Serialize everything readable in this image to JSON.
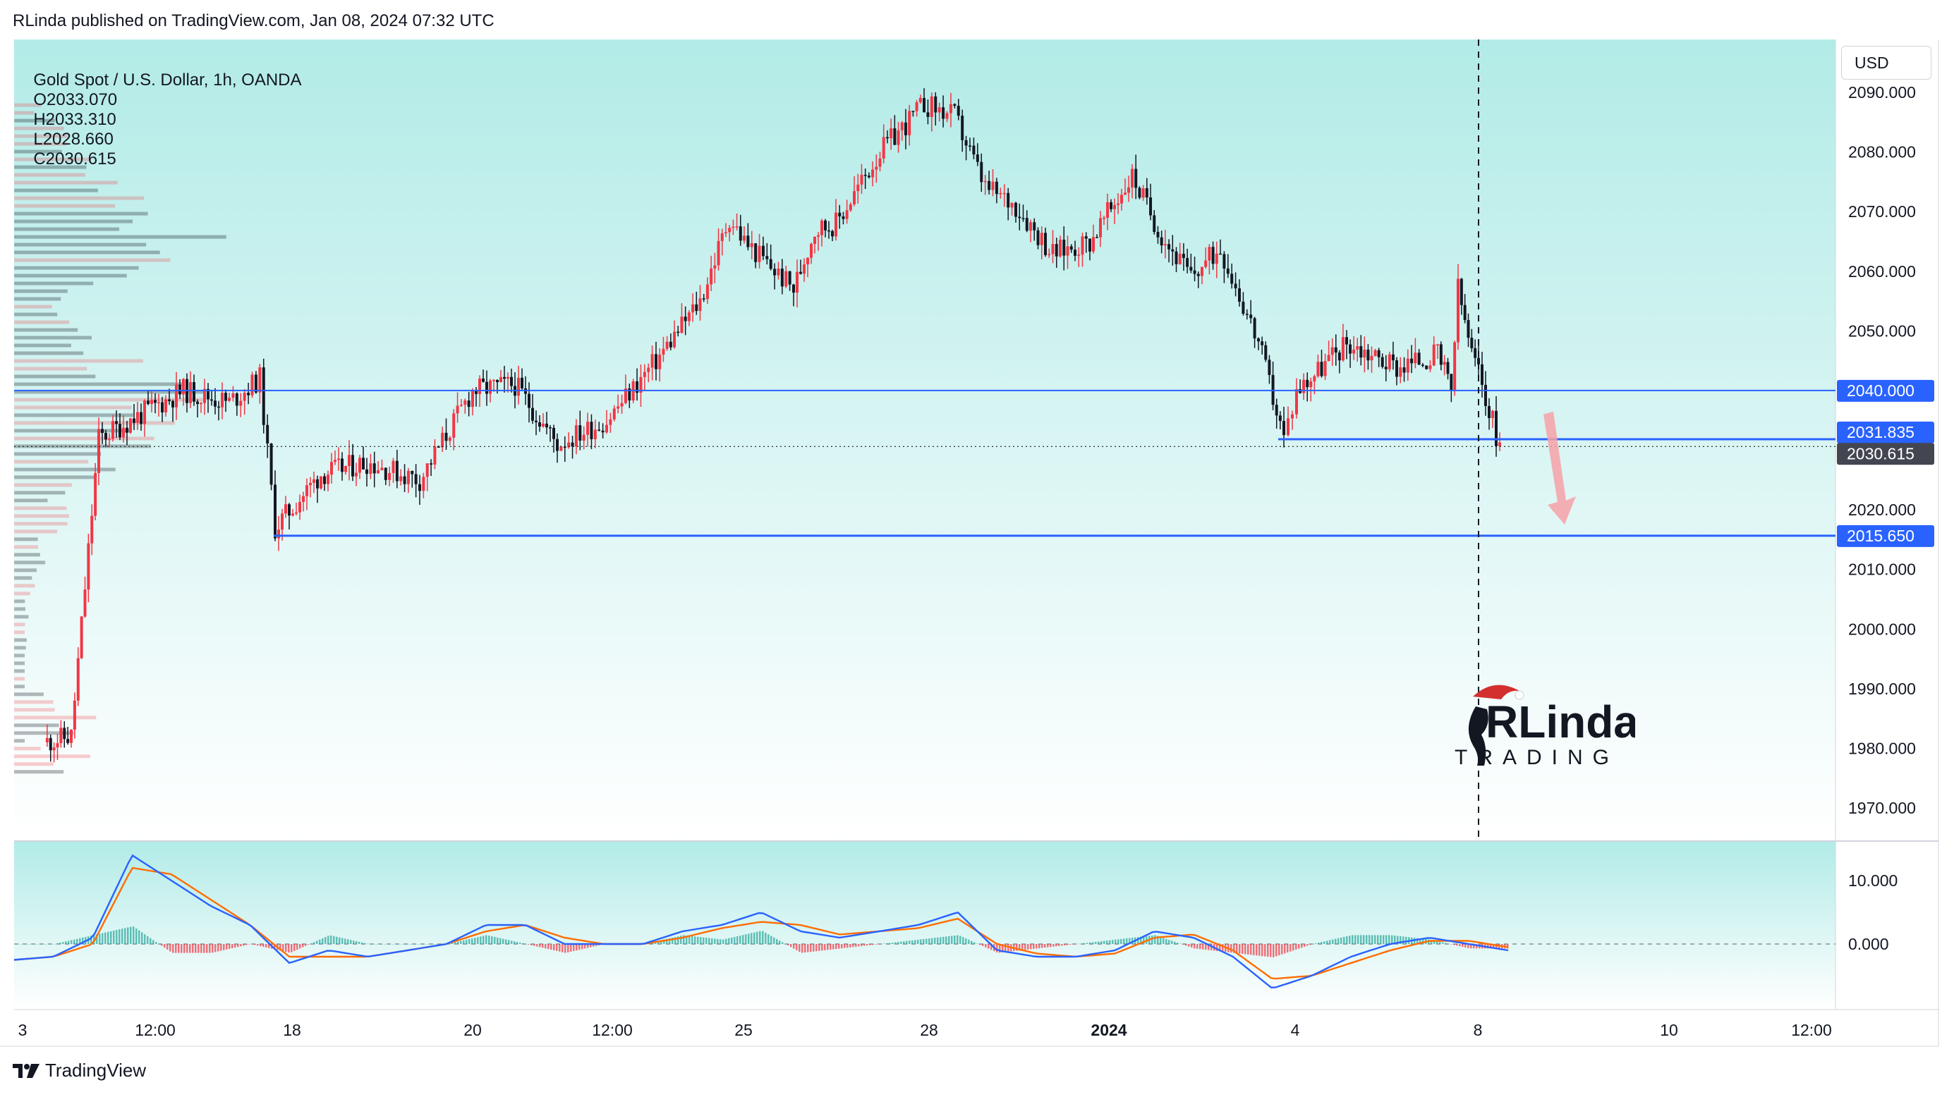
{
  "header": {
    "published_text": "RLinda published on TradingView.com, Jan 08, 2024 07:32 UTC"
  },
  "legend": {
    "symbol": "Gold Spot / U.S. Dollar, 1h, OANDA",
    "open": "O2033.070",
    "high": "H2033.310",
    "low": "L2028.660",
    "close": "C2030.615"
  },
  "currency_button": "USD",
  "footer": {
    "brand": "TradingView"
  },
  "watermark": {
    "line1": "RLinda",
    "line2": "TRADING"
  },
  "colors": {
    "up": "#f23645",
    "down": "#131722",
    "level_line": "#2962ff",
    "bg_top": "#b2ebe7",
    "bg_bottom": "#ffffff",
    "macd": "#2962ff",
    "signal": "#ff6d00",
    "hist_pos": "#26a69a",
    "hist_neg": "#f23645",
    "arrow": "#f7a1a7"
  },
  "chart_data": [
    {
      "type": "candlestick",
      "title": "Gold Spot / U.S. Dollar, 1h, OANDA",
      "y_axis": {
        "ylim": [
          1963,
          2095
        ],
        "ticks": [
          "1970.000",
          "1980.000",
          "1990.000",
          "2000.000",
          "2010.000",
          "2020.000",
          "2030.000",
          "2040.000",
          "2050.000",
          "2060.000",
          "2070.000",
          "2080.000",
          "2090.000"
        ]
      },
      "x_axis": {
        "ticks": [
          "3",
          "12:00",
          "18",
          "20",
          "12:00",
          "25",
          "28",
          "2024",
          "4",
          "8",
          "10",
          "12:00"
        ],
        "bold_tick": "2024"
      },
      "path_anchors": [
        {
          "x": "Dec 13",
          "y": 1981
        },
        {
          "x": "Dec 13 12:00",
          "y": 1982
        },
        {
          "x": "Dec 14",
          "y": 2032
        },
        {
          "x": "Dec 14 12:00",
          "y": 2036
        },
        {
          "x": "Dec 15 00:00",
          "y": 2040
        },
        {
          "x": "Dec 15 12:00",
          "y": 2038
        },
        {
          "x": "Dec 15 20:00",
          "y": 2042
        },
        {
          "x": "Dec 18",
          "y": 2017
        },
        {
          "x": "Dec 18 12:00",
          "y": 2026
        },
        {
          "x": "Dec 19",
          "y": 2028
        },
        {
          "x": "Dec 19 12:00",
          "y": 2025
        },
        {
          "x": "Dec 20",
          "y": 2040
        },
        {
          "x": "Dec 20 12:00",
          "y": 2041
        },
        {
          "x": "Dec 21",
          "y": 2031
        },
        {
          "x": "Dec 21 12:00",
          "y": 2035
        },
        {
          "x": "Dec 22",
          "y": 2045
        },
        {
          "x": "Dec 22 12:00",
          "y": 2055
        },
        {
          "x": "Dec 22 20:00",
          "y": 2069
        },
        {
          "x": "Dec 25",
          "y": 2065
        },
        {
          "x": "Dec 26",
          "y": 2057
        },
        {
          "x": "Dec 26 12:00",
          "y": 2067
        },
        {
          "x": "Dec 27",
          "y": 2068
        },
        {
          "x": "Dec 27 12:00",
          "y": 2080
        },
        {
          "x": "Dec 28 00:00",
          "y": 2088
        },
        {
          "x": "Dec 28 08:00",
          "y": 2086
        },
        {
          "x": "Dec 28 16:00",
          "y": 2074
        },
        {
          "x": "Dec 29",
          "y": 2071
        },
        {
          "x": "Dec 29 12:00",
          "y": 2063
        },
        {
          "x": "Jan 1",
          "y": 2065
        },
        {
          "x": "Jan 2 00:00",
          "y": 2076
        },
        {
          "x": "Jan 2 08:00",
          "y": 2066
        },
        {
          "x": "Jan 2 16:00",
          "y": 2059
        },
        {
          "x": "Jan 3",
          "y": 2064
        },
        {
          "x": "Jan 3 12:00",
          "y": 2048
        },
        {
          "x": "Jan 3 20:00",
          "y": 2032
        },
        {
          "x": "Jan 4",
          "y": 2040
        },
        {
          "x": "Jan 4 12:00",
          "y": 2048
        },
        {
          "x": "Jan 5",
          "y": 2044
        },
        {
          "x": "Jan 5 12:00",
          "y": 2046
        },
        {
          "x": "Jan 5 16:00",
          "y": 2040
        },
        {
          "x": "Jan 5 18:00",
          "y": 2057
        },
        {
          "x": "Jan 5 22:00",
          "y": 2046
        },
        {
          "x": "Jan 8 00:00",
          "y": 2043
        },
        {
          "x": "Jan 8 06:00",
          "y": 2030.6
        }
      ],
      "levels": [
        {
          "value": 2040.0,
          "label": "2040.000",
          "style": "thin"
        },
        {
          "value": 2031.835,
          "label": "2031.835",
          "style": "thick"
        },
        {
          "value": 2015.65,
          "label": "2015.650",
          "style": "thick"
        }
      ],
      "last_price": {
        "value": 2030.615,
        "label": "2030.615"
      },
      "vertical_marker": {
        "x": "Jan 8"
      },
      "projection_arrow": {
        "from": 2036,
        "to": 2018,
        "direction": "down"
      }
    },
    {
      "type": "line",
      "title": "",
      "y_axis": {
        "ylim": [
          -9,
          15
        ],
        "ticks": [
          "10.000",
          "0.000"
        ]
      },
      "series": [
        {
          "values": [
            -2.5,
            -2,
            1,
            14,
            10,
            6,
            3,
            -3,
            -1,
            -2,
            -1,
            0,
            3,
            3,
            0,
            0,
            0,
            2,
            3,
            5,
            2,
            1,
            2,
            3,
            5,
            -1,
            -2,
            -2,
            -1,
            2,
            1,
            -2,
            -7,
            -5,
            -2,
            0,
            1,
            0,
            -1
          ]
        },
        {
          "values": [
            -2.5,
            -2,
            0,
            12,
            11,
            7,
            3,
            -2,
            -2,
            -2,
            -1,
            0,
            2,
            3,
            1,
            0,
            0,
            1,
            2.5,
            3.5,
            3,
            1.5,
            2,
            2.5,
            4,
            0,
            -1.5,
            -2,
            -1.5,
            1,
            1.5,
            -1,
            -5.5,
            -5,
            -3,
            -1,
            0.5,
            0.5,
            -0.5
          ]
        }
      ]
    }
  ]
}
